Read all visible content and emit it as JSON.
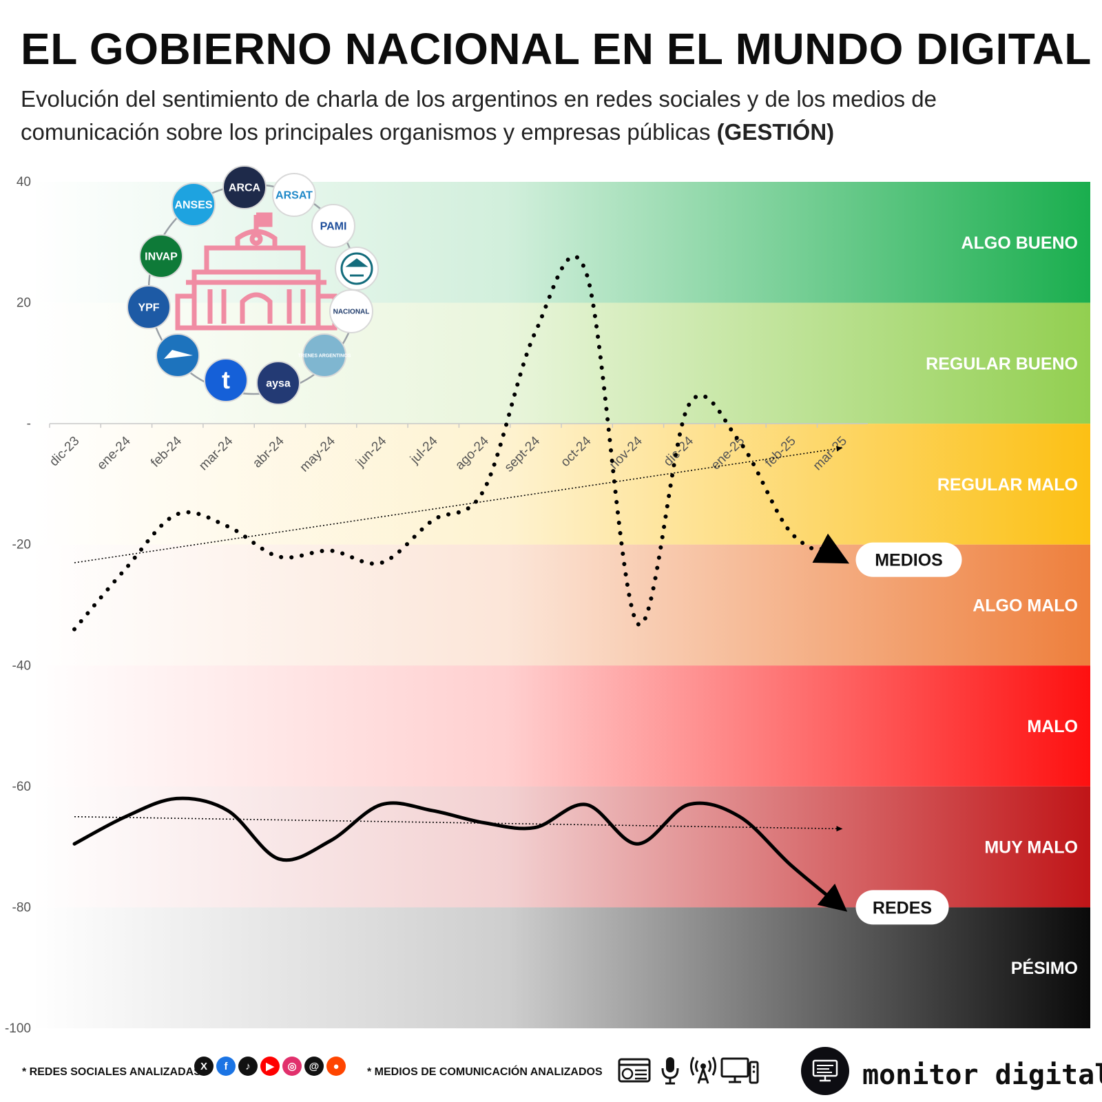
{
  "header": {
    "title": "EL GOBIERNO NACIONAL EN EL MUNDO DIGITAL",
    "subtitle_main": "Evolución del sentimiento de charla de los argentinos en redes sociales y de los medios de comunicación sobre los principales organismos y empresas públicas ",
    "subtitle_bold": "(GESTIÓN)"
  },
  "chart_data": {
    "type": "line",
    "title": "EL GOBIERNO NACIONAL EN EL MUNDO DIGITAL",
    "categories": [
      "dic-23",
      "ene-24",
      "feb-24",
      "mar-24",
      "abr-24",
      "may-24",
      "jun-24",
      "jul-24",
      "ago-24",
      "sept-24",
      "oct-24",
      "nov-24",
      "dic-24",
      "ene-25",
      "feb-25",
      "mar-25"
    ],
    "y_ticks": [
      "40",
      "20",
      "-",
      "-20",
      "-40",
      "-60",
      "-80",
      "-100"
    ],
    "ylim": [
      -100,
      40
    ],
    "series": [
      {
        "name": "MEDIOS",
        "style": "dotted",
        "values": [
          -34,
          -24,
          -15,
          -17,
          -22,
          -21,
          -23,
          -16,
          -11,
          15,
          25,
          -33,
          3,
          -3,
          -18,
          -22.5
        ]
      },
      {
        "name": "REDES",
        "style": "solid",
        "values": [
          -69.5,
          -65,
          -62,
          -64,
          -72,
          -69,
          -63,
          -64,
          -66,
          -66.8,
          -63,
          -69.5,
          -63,
          -65,
          -73,
          -80
        ]
      }
    ],
    "trends": [
      {
        "series": "MEDIOS",
        "start": -23,
        "end": -4
      },
      {
        "series": "REDES",
        "start": -65,
        "end": -67
      }
    ],
    "bands": [
      {
        "label": "ALGO BUENO",
        "from": 20,
        "to": 40,
        "color": "#1aae4e"
      },
      {
        "label": "REGULAR BUENO",
        "from": 0,
        "to": 20,
        "color": "#92cf50"
      },
      {
        "label": "REGULAR MALO",
        "from": -20,
        "to": 0,
        "color": "#fcc014"
      },
      {
        "label": "ALGO MALO",
        "from": -40,
        "to": -20,
        "color": "#ee7f3c"
      },
      {
        "label": "MALO",
        "from": -60,
        "to": -40,
        "color": "#fe1010"
      },
      {
        "label": "MUY MALO",
        "from": -80,
        "to": -60,
        "color": "#c01518"
      },
      {
        "label": "PÉSIMO",
        "from": -100,
        "to": -80,
        "color": "#0a0a0a"
      }
    ]
  },
  "logos": [
    {
      "label": "ARCA",
      "bg": "#1e2a4a",
      "fg": "#ffffff"
    },
    {
      "label": "ARSAT",
      "bg": "#ffffff",
      "fg": "#1e88c8"
    },
    {
      "label": "PAMI",
      "bg": "#ffffff",
      "fg": "#1e4e9b"
    },
    {
      "label": "",
      "bg": "#ffffff",
      "fg": "#136c7c"
    },
    {
      "label": "NACIONAL",
      "bg": "#ffffff",
      "fg": "#1e3a6a"
    },
    {
      "label": "TRENES ARGENTINOS",
      "bg": "#7fb6d0",
      "fg": "#ffffff"
    },
    {
      "label": "aysa",
      "bg": "#233a74",
      "fg": "#ffffff"
    },
    {
      "label": "t",
      "bg": "#1560d8",
      "fg": "#ffffff"
    },
    {
      "label": "",
      "bg": "#1d73bd",
      "fg": "#ffffff"
    },
    {
      "label": "YPF",
      "bg": "#1d5aa5",
      "fg": "#ffffff"
    },
    {
      "label": "INVAP",
      "bg": "#0e7a38",
      "fg": "#ffffff"
    },
    {
      "label": "ANSES",
      "bg": "#1ea3e0",
      "fg": "#ffffff"
    }
  ],
  "footer": {
    "redes_label": "* REDES SOCIALES ANALIZADAS",
    "medios_label": "* MEDIOS DE COMUNICACIÓN ANALIZADOS",
    "social_icons": [
      {
        "name": "x-icon",
        "glyph": "X",
        "color": "#111111"
      },
      {
        "name": "facebook-icon",
        "glyph": "f",
        "color": "#1b74e4"
      },
      {
        "name": "tiktok-icon",
        "glyph": "♪",
        "color": "#111111"
      },
      {
        "name": "youtube-icon",
        "glyph": "▶",
        "color": "#ff0000"
      },
      {
        "name": "instagram-icon",
        "glyph": "◎",
        "color": "#e1306c"
      },
      {
        "name": "threads-icon",
        "glyph": "@",
        "color": "#111111"
      },
      {
        "name": "reddit-icon",
        "glyph": "●",
        "color": "#ff4500"
      }
    ],
    "brand": "monitor digital"
  }
}
